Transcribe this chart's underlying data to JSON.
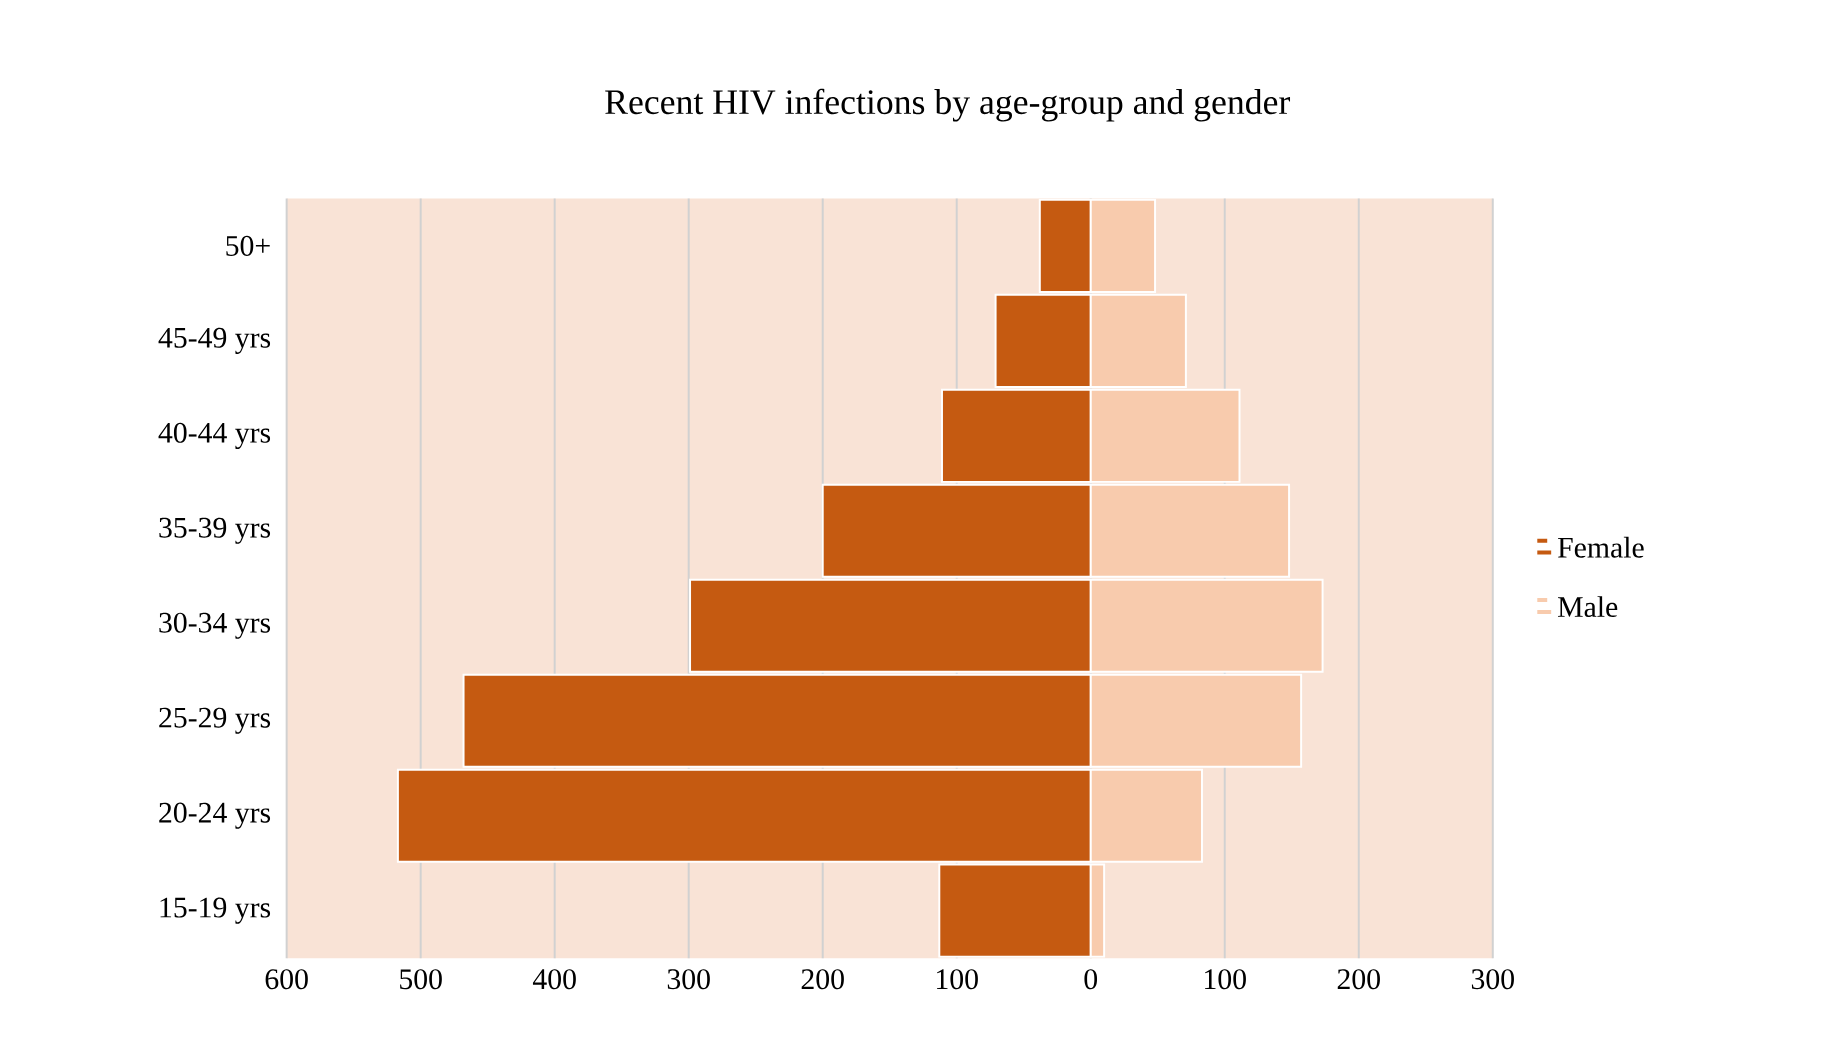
{
  "chart_data": {
    "type": "bar",
    "orientation": "horizontal",
    "stacked": true,
    "title": "Recent HIV infections by age-group and gender",
    "categories": [
      "50+",
      "45-49 yrs",
      "40-44 yrs",
      "35-39 yrs",
      "30-34 yrs",
      "25-29 yrs",
      "20-24 yrs",
      "15-19 yrs"
    ],
    "series": [
      {
        "name": "Female",
        "color": "#c55a11",
        "values": [
          -38,
          -71,
          -111,
          -200,
          -299,
          -468,
          -517,
          -113
        ]
      },
      {
        "name": "Male",
        "color": "#f8cbad",
        "values": [
          48,
          71,
          111,
          148,
          173,
          157,
          83,
          10
        ]
      }
    ],
    "xlim": [
      -600,
      300
    ],
    "xticks": [
      {
        "value": -600,
        "label": "600"
      },
      {
        "value": -500,
        "label": "500"
      },
      {
        "value": -400,
        "label": "400"
      },
      {
        "value": -300,
        "label": "300"
      },
      {
        "value": -200,
        "label": "200"
      },
      {
        "value": -100,
        "label": "100"
      },
      0,
      100,
      200,
      300
    ],
    "grid": "x",
    "legend": "right"
  }
}
